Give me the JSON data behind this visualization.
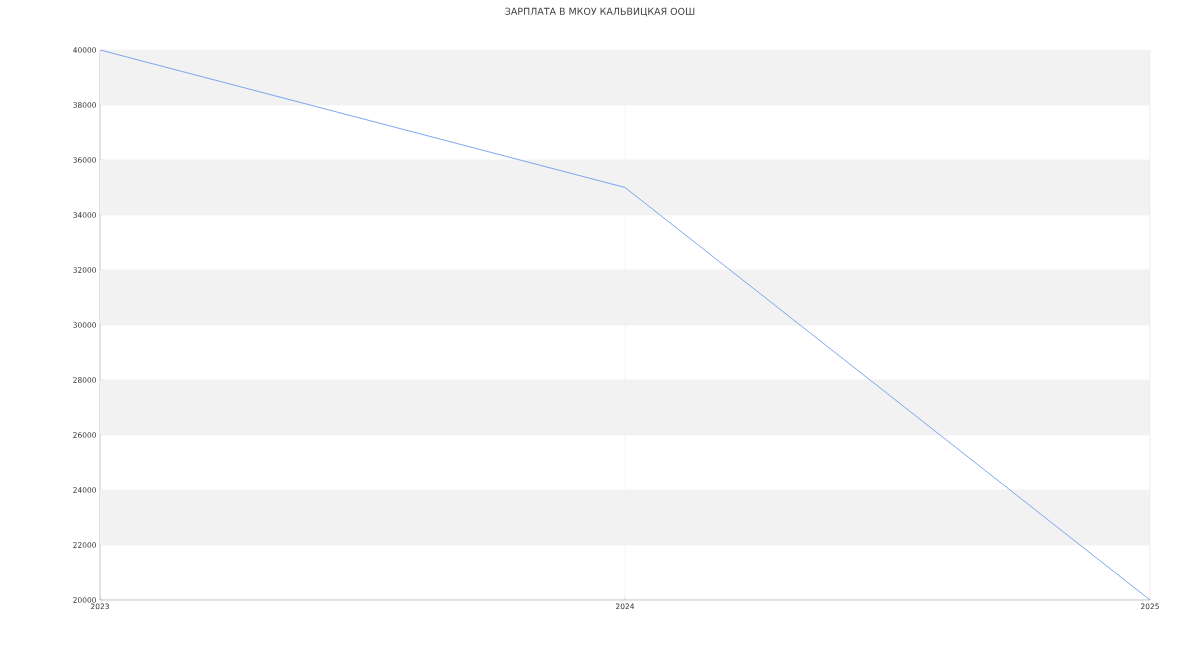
{
  "chart_data": {
    "type": "line",
    "title": "ЗАРПЛАТА В МКОУ КАЛЬВИЦКАЯ ООШ",
    "x": [
      2023,
      2024,
      2025
    ],
    "series": [
      {
        "color": "#6f9cf0",
        "values": [
          40000,
          35000,
          20000
        ]
      }
    ],
    "xlim": [
      2023,
      2025
    ],
    "xticks": [
      2023,
      2024,
      2025
    ],
    "ylim": [
      20000,
      40000
    ],
    "yticks": [
      20000,
      22000,
      24000,
      26000,
      28000,
      30000,
      32000,
      34000,
      36000,
      38000,
      40000
    ],
    "grid": true,
    "marker": "none",
    "line_style": "solid"
  }
}
